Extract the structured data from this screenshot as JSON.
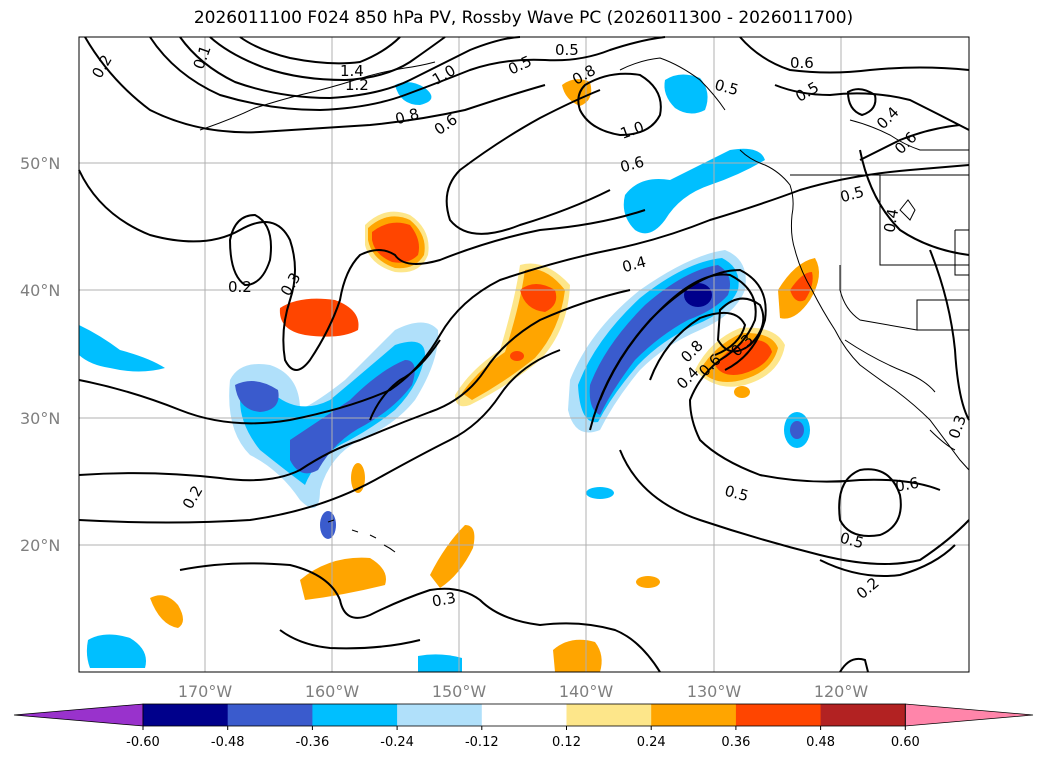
{
  "title": "2026011100 F024 850 hPa PV, Rossby Wave PC (2026011300 - 2026011700)",
  "lat_labels": [
    "50°N",
    "40°N",
    "30°N",
    "20°N"
  ],
  "lon_labels": [
    "170°W",
    "160°W",
    "150°W",
    "140°W",
    "130°W",
    "120°W"
  ],
  "colorbar": {
    "ticks": [
      "-0.60",
      "-0.48",
      "-0.36",
      "-0.24",
      "-0.12",
      "0.12",
      "0.24",
      "0.36",
      "0.48",
      "0.60"
    ],
    "colors": [
      "#9932cc",
      "#00008b",
      "#3a5bcd",
      "#00bfff",
      "#b0e0fa",
      "#ffffff",
      "#fde68a",
      "#ffa500",
      "#ff4500",
      "#b22222",
      "#ff85aa"
    ]
  },
  "contour_labels": [
    "0.2",
    "0.1",
    "1.4",
    "1.2",
    "1.0",
    "0.5",
    "0.8",
    "0.6",
    "0.3",
    "0.4",
    "0.5",
    "0.8",
    "1.0",
    "0.6",
    "0.5",
    "0.6",
    "0.5",
    "0.4",
    "0.6",
    "0.5",
    "0.4",
    "0.2",
    "0.3",
    "0.2",
    "0.3",
    "0.4",
    "0.8",
    "0.6",
    "0.5",
    "0.5",
    "0.6",
    "0.3",
    "0.2"
  ]
}
